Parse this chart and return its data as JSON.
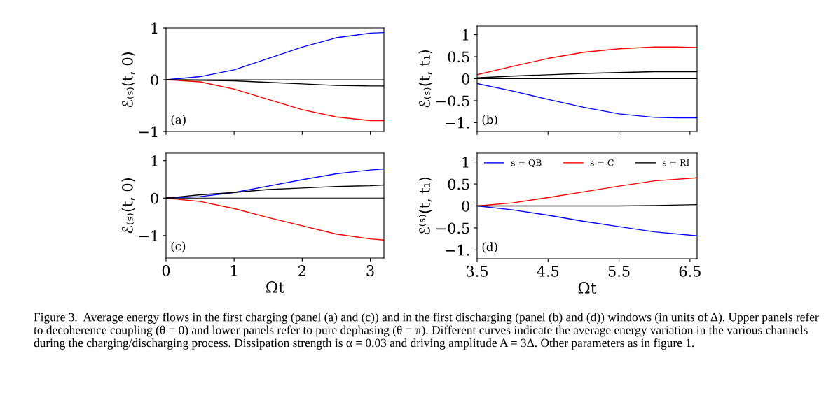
{
  "chart_data": [
    {
      "type": "line",
      "ylabel": "ℰ₍ₛ₎(t, 0)",
      "annotations": [
        "(a)"
      ],
      "xlim": [
        0,
        3.2
      ],
      "ylim": [
        -1,
        1
      ],
      "xticks": [
        0,
        1,
        2,
        3
      ],
      "yticks": [
        -1,
        0,
        1
      ],
      "tick_labels": "y",
      "ref_lines": [
        {
          "axis": "y",
          "value": 0,
          "color": "#000000"
        }
      ],
      "series": [
        {
          "color": "#0000ff",
          "x": [
            0,
            0.5,
            1,
            1.5,
            2,
            2.5,
            3,
            3.2
          ],
          "values": [
            0,
            0.06,
            0.19,
            0.41,
            0.63,
            0.81,
            0.9,
            0.91
          ]
        },
        {
          "color": "#ff0000",
          "x": [
            0,
            0.5,
            1,
            1.5,
            2,
            2.5,
            3,
            3.2
          ],
          "values": [
            0,
            -0.04,
            -0.18,
            -0.38,
            -0.58,
            -0.72,
            -0.79,
            -0.79
          ]
        },
        {
          "color": "#000000",
          "x": [
            0,
            0.5,
            1,
            1.5,
            2,
            2.5,
            3,
            3.2
          ],
          "values": [
            0,
            -0.01,
            -0.02,
            -0.05,
            -0.08,
            -0.11,
            -0.12,
            -0.12
          ]
        }
      ]
    },
    {
      "type": "line",
      "ylabel": "ℰ₍ₛ₎(t, t₁)",
      "annotations": [
        "(b)"
      ],
      "xlim": [
        3.5,
        6.6
      ],
      "ylim": [
        -1.2,
        1.2
      ],
      "xticks": [
        3.5,
        4.5,
        5.5,
        6.5
      ],
      "yticks": [
        {
          "value": -1,
          "label": "−1."
        },
        -0.5,
        0,
        0.5,
        1
      ],
      "tick_labels": "y",
      "ref_lines": [
        {
          "axis": "y",
          "value": 0,
          "color": "#000000"
        }
      ],
      "series": [
        {
          "color": "#0000ff",
          "x": [
            3.5,
            4,
            4.5,
            5,
            5.5,
            6,
            6.3,
            6.6
          ],
          "values": [
            -0.11,
            -0.28,
            -0.47,
            -0.65,
            -0.8,
            -0.88,
            -0.89,
            -0.89
          ]
        },
        {
          "color": "#ff0000",
          "x": [
            3.5,
            4,
            4.5,
            5,
            5.5,
            6,
            6.3,
            6.6
          ],
          "values": [
            0.09,
            0.28,
            0.46,
            0.6,
            0.68,
            0.72,
            0.72,
            0.71
          ]
        },
        {
          "color": "#000000",
          "x": [
            3.5,
            4,
            4.5,
            5,
            5.5,
            6,
            6.3,
            6.6
          ],
          "values": [
            0.02,
            0.06,
            0.09,
            0.12,
            0.14,
            0.16,
            0.16,
            0.16
          ]
        }
      ]
    },
    {
      "type": "line",
      "xlabel": "Ωt",
      "ylabel": "ℰ₍ₛ₎(t, 0)",
      "annotations": [
        "(c)"
      ],
      "xlim": [
        0,
        3.2
      ],
      "ylim": [
        -1.6,
        1.2
      ],
      "xticks": [
        0,
        1,
        2,
        3
      ],
      "yticks": [
        -1,
        0,
        1
      ],
      "ref_lines": [
        {
          "axis": "y",
          "value": 0,
          "color": "#000000"
        }
      ],
      "series": [
        {
          "color": "#0000ff",
          "x": [
            0,
            0.5,
            1,
            1.5,
            2,
            2.5,
            3,
            3.2
          ],
          "values": [
            0,
            0.04,
            0.15,
            0.32,
            0.49,
            0.65,
            0.75,
            0.78
          ]
        },
        {
          "color": "#ff0000",
          "x": [
            0,
            0.5,
            1,
            1.5,
            2,
            2.5,
            3,
            3.2
          ],
          "values": [
            0,
            -0.09,
            -0.28,
            -0.52,
            -0.74,
            -0.96,
            -1.09,
            -1.12
          ]
        },
        {
          "color": "#000000",
          "x": [
            0,
            0.5,
            1,
            1.5,
            2,
            2.5,
            3,
            3.2
          ],
          "values": [
            0,
            0.09,
            0.15,
            0.23,
            0.27,
            0.31,
            0.33,
            0.35
          ]
        }
      ]
    },
    {
      "type": "line",
      "xlabel": "Ωt",
      "ylabel": "ℰ⁽ˢ⁾(t, t₁)",
      "annotations": [
        "(d)",
        "Figure 3.  Average energy flows in the first charging (panel (a) and (c)) and in the first discharging (panel (b) and (d)) windows (in units of Δ). Upper panels refer to decoherence coupling (θ = 0) and lower panels refer to pure dephasing (θ = π). Different curves indicate the average energy variation in the various channels during the charging/discharging process. Dissipation strength is α = 0.03 and driving amplitude A = 3Δ. Other parameters as in figure 1."
      ],
      "xlim": [
        3.5,
        6.6
      ],
      "ylim": [
        -1.2,
        1.2
      ],
      "xticks": [
        3.5,
        4.5,
        5.5,
        6.5
      ],
      "yticks": [
        {
          "value": -1,
          "label": "−1."
        },
        -0.5,
        0,
        0.5,
        1
      ],
      "legend": "top",
      "ref_lines": [
        {
          "axis": "y",
          "value": 0,
          "color": "#000000"
        }
      ],
      "series": [
        {
          "name": "s = QB",
          "color": "#0000ff",
          "x": [
            3.5,
            4,
            4.5,
            5,
            5.5,
            6,
            6.6
          ],
          "values": [
            0,
            -0.09,
            -0.21,
            -0.35,
            -0.47,
            -0.59,
            -0.68
          ]
        },
        {
          "name": "s = C",
          "color": "#ff0000",
          "x": [
            3.5,
            4,
            4.5,
            5,
            5.5,
            6,
            6.6
          ],
          "values": [
            0,
            0.07,
            0.19,
            0.32,
            0.45,
            0.57,
            0.64
          ]
        },
        {
          "name": "s = RI",
          "color": "#000000",
          "x": [
            3.5,
            4,
            4.5,
            5,
            5.5,
            6,
            6.6
          ],
          "values": [
            0,
            0,
            0,
            0,
            0,
            0.01,
            0.03
          ]
        }
      ]
    }
  ]
}
